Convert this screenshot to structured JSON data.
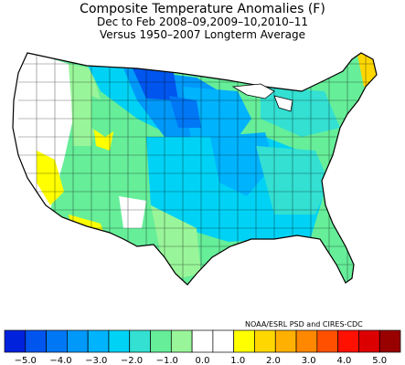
{
  "title": {
    "line1": "Composite Temperature Anomalies (F)",
    "line2": "Dec to Feb  2008–09,2009–10,2010–11",
    "line3": "Versus 1950–2007 Longterm Average"
  },
  "credit": "NOAA/ESRL PSD and CIRES-CDC",
  "legend": {
    "labels": [
      "−5.0",
      "−4.0",
      "−3.0",
      "−2.0",
      "−1.0",
      "0.0",
      "1.0",
      "2.0",
      "3.0",
      "4.0",
      "5.0"
    ],
    "colors": [
      "#0022dd",
      "#0055ee",
      "#0077f5",
      "#0099fa",
      "#00b3fd",
      "#00d2f5",
      "#33e0d2",
      "#66ee99",
      "#99f599",
      "#ffffff",
      "#ffffff",
      "#ffff00",
      "#ffd700",
      "#ffb000",
      "#ff8800",
      "#ff5000",
      "#ff1000",
      "#dd0000",
      "#990000"
    ]
  },
  "regions": [
    {
      "name": "northern-plains",
      "value": -3.5
    },
    {
      "name": "upper-midwest",
      "value": -3.0
    },
    {
      "name": "southeast",
      "value": -2.0
    },
    {
      "name": "texas-southwest",
      "value": -0.5
    },
    {
      "name": "great-basin",
      "value": 0.3
    },
    {
      "name": "arizona",
      "value": 1.0
    },
    {
      "name": "northern-maine",
      "value": 2.0
    }
  ]
}
